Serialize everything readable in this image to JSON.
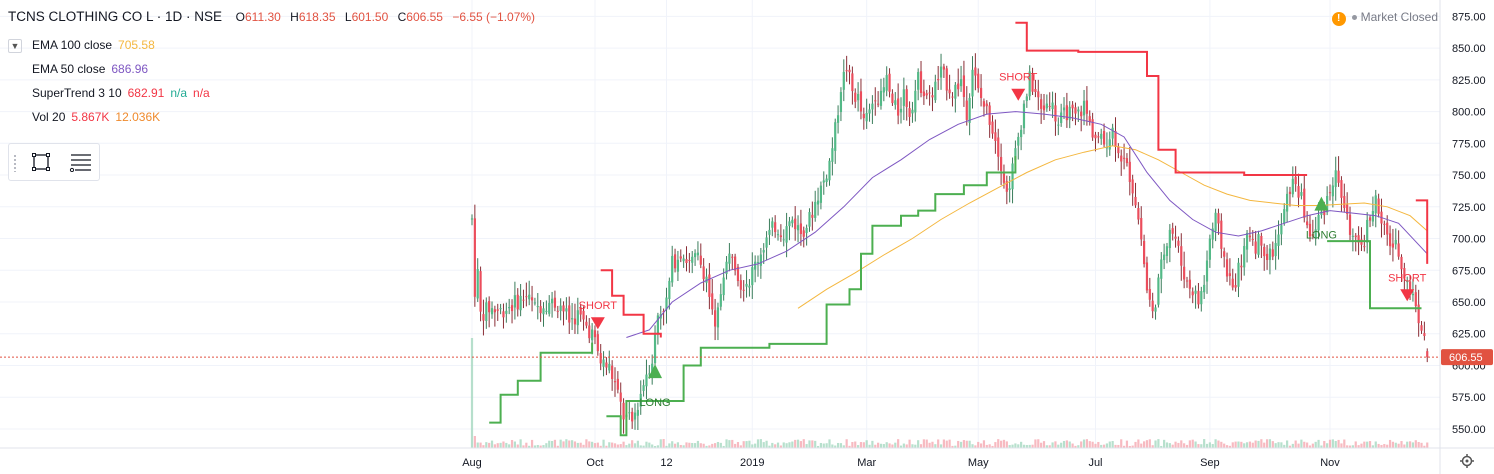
{
  "header": {
    "symbol": "TCNS CLOTHING CO L · 1D · NSE",
    "open_label": "O",
    "open": "611.30",
    "high_label": "H",
    "high": "618.35",
    "low_label": "L",
    "low": "601.50",
    "close_label": "C",
    "close": "606.55",
    "change": "−6.55 (−1.07%)"
  },
  "status": {
    "icon": "warning-icon",
    "text": "Market Closed"
  },
  "indicators": [
    {
      "label": "EMA 100 close",
      "values": [
        "705.58"
      ],
      "colors": [
        "#f4b73f"
      ]
    },
    {
      "label": "EMA 50 close",
      "values": [
        "686.96"
      ],
      "colors": [
        "#7e57c2"
      ]
    },
    {
      "label": "SuperTrend 3 10",
      "values": [
        "682.91",
        "n/a",
        "n/a"
      ],
      "colors": [
        "#f23645",
        "#22ab94",
        "#f23645"
      ]
    },
    {
      "label": "Vol 20",
      "values": [
        "5.867K",
        "12.036K"
      ],
      "colors": [
        "#f23645",
        "#ef8a2d"
      ]
    }
  ],
  "toolbar": {
    "icons": [
      "rectangle-select-icon",
      "object-tree-icon"
    ]
  },
  "colors": {
    "up": "#53b987",
    "down": "#eb4d5c",
    "up_wick": "#3a7d5b",
    "down_wick": "#8a2d36",
    "st_up": "#4caf50",
    "st_down": "#f23645",
    "ema100": "#f4b73f",
    "ema50": "#7e57c2",
    "last_price": "#e15241",
    "grid": "#f0f3fa"
  },
  "chart_data": {
    "type": "candlestick",
    "y_axis": {
      "ylim": [
        535,
        880
      ],
      "ticks": [
        550,
        575,
        600,
        625,
        650,
        675,
        700,
        725,
        750,
        775,
        800,
        825,
        850,
        875
      ]
    },
    "y_tick_labels": [
      "550.00",
      "575.00",
      "600.00",
      "625.00",
      "650.00",
      "675.00",
      "700.00",
      "725.00",
      "750.00",
      "775.00",
      "800.00",
      "825.00",
      "850.00",
      "875.00"
    ],
    "x_labels": [
      {
        "label": "Aug",
        "bar": 0
      },
      {
        "label": "Oct",
        "bar": 43
      },
      {
        "label": "12",
        "bar": 68
      },
      {
        "label": "2019",
        "bar": 98
      },
      {
        "label": "Mar",
        "bar": 138
      },
      {
        "label": "May",
        "bar": 177
      },
      {
        "label": "Jul",
        "bar": 218
      },
      {
        "label": "Sep",
        "bar": 258
      },
      {
        "label": "Nov",
        "bar": 300
      }
    ],
    "last_price": {
      "value": 606.55,
      "label": "606.55"
    },
    "price_path": [
      [
        0,
        715
      ],
      [
        1,
        660
      ],
      [
        2,
        672
      ],
      [
        3,
        640
      ],
      [
        6,
        645
      ],
      [
        10,
        643
      ],
      [
        14,
        648
      ],
      [
        19,
        655
      ],
      [
        22,
        645
      ],
      [
        26,
        650
      ],
      [
        31,
        648
      ],
      [
        34,
        635
      ],
      [
        37,
        640
      ],
      [
        42,
        625
      ],
      [
        45,
        603
      ],
      [
        48,
        598
      ],
      [
        50,
        585
      ],
      [
        53,
        560
      ],
      [
        56,
        555
      ],
      [
        58,
        570
      ],
      [
        61,
        595
      ],
      [
        63,
        605
      ],
      [
        65,
        640
      ],
      [
        68,
        650
      ],
      [
        70,
        680
      ],
      [
        73,
        690
      ],
      [
        76,
        680
      ],
      [
        79,
        685
      ],
      [
        82,
        670
      ],
      [
        85,
        625
      ],
      [
        88,
        675
      ],
      [
        91,
        690
      ],
      [
        94,
        665
      ],
      [
        97,
        668
      ],
      [
        100,
        685
      ],
      [
        103,
        700
      ],
      [
        106,
        710
      ],
      [
        109,
        705
      ],
      [
        112,
        715
      ],
      [
        115,
        705
      ],
      [
        118,
        715
      ],
      [
        121,
        735
      ],
      [
        123,
        745
      ],
      [
        125,
        760
      ],
      [
        127,
        785
      ],
      [
        129,
        820
      ],
      [
        131,
        835
      ],
      [
        133,
        815
      ],
      [
        135,
        810
      ],
      [
        137,
        790
      ],
      [
        139,
        800
      ],
      [
        141,
        815
      ],
      [
        143,
        810
      ],
      [
        145,
        825
      ],
      [
        147,
        805
      ],
      [
        149,
        800
      ],
      [
        151,
        815
      ],
      [
        153,
        800
      ],
      [
        156,
        825
      ],
      [
        160,
        810
      ],
      [
        164,
        830
      ],
      [
        168,
        815
      ],
      [
        171,
        825
      ],
      [
        173,
        800
      ],
      [
        175,
        835
      ],
      [
        177,
        815
      ],
      [
        179,
        805
      ],
      [
        181,
        795
      ],
      [
        183,
        780
      ],
      [
        185,
        760
      ],
      [
        187,
        735
      ],
      [
        189,
        755
      ],
      [
        191,
        780
      ],
      [
        193,
        805
      ],
      [
        195,
        825
      ],
      [
        197,
        815
      ],
      [
        199,
        800
      ],
      [
        202,
        810
      ],
      [
        205,
        790
      ],
      [
        208,
        800
      ],
      [
        211,
        795
      ],
      [
        214,
        805
      ],
      [
        216,
        790
      ],
      [
        218,
        780
      ],
      [
        221,
        775
      ],
      [
        224,
        785
      ],
      [
        227,
        765
      ],
      [
        230,
        750
      ],
      [
        232,
        730
      ],
      [
        234,
        700
      ],
      [
        236,
        660
      ],
      [
        238,
        640
      ],
      [
        240,
        665
      ],
      [
        242,
        690
      ],
      [
        244,
        710
      ],
      [
        246,
        700
      ],
      [
        248,
        680
      ],
      [
        250,
        665
      ],
      [
        252,
        660
      ],
      [
        254,
        650
      ],
      [
        256,
        665
      ],
      [
        258,
        700
      ],
      [
        260,
        715
      ],
      [
        262,
        695
      ],
      [
        264,
        675
      ],
      [
        266,
        660
      ],
      [
        268,
        675
      ],
      [
        270,
        690
      ],
      [
        272,
        705
      ],
      [
        274,
        695
      ],
      [
        276,
        700
      ],
      [
        278,
        685
      ],
      [
        280,
        690
      ],
      [
        282,
        700
      ],
      [
        284,
        720
      ],
      [
        286,
        740
      ],
      [
        288,
        745
      ],
      [
        290,
        730
      ],
      [
        292,
        710
      ],
      [
        294,
        700
      ],
      [
        296,
        715
      ],
      [
        298,
        725
      ],
      [
        300,
        740
      ],
      [
        302,
        750
      ],
      [
        304,
        735
      ],
      [
        306,
        715
      ],
      [
        308,
        700
      ],
      [
        310,
        690
      ],
      [
        312,
        700
      ],
      [
        314,
        720
      ],
      [
        316,
        730
      ],
      [
        318,
        710
      ],
      [
        320,
        700
      ],
      [
        322,
        695
      ],
      [
        324,
        690
      ],
      [
        326,
        672
      ],
      [
        328,
        660
      ],
      [
        330,
        648
      ],
      [
        332,
        630
      ],
      [
        334,
        606.55
      ]
    ],
    "supertrend": {
      "up_segments": [
        [
          [
            6,
            555
          ],
          [
            10,
            577
          ],
          [
            16,
            588
          ],
          [
            24,
            610
          ],
          [
            42,
            618
          ]
        ],
        [
          [
            47,
            560
          ],
          [
            52,
            545
          ],
          [
            54,
            572
          ],
          [
            66,
            572
          ],
          [
            74,
            600
          ],
          [
            80,
            614
          ],
          [
            84,
            614
          ],
          [
            92,
            614
          ],
          [
            104,
            617
          ],
          [
            120,
            617
          ],
          [
            124,
            648
          ],
          [
            132,
            660
          ],
          [
            136,
            688
          ],
          [
            140,
            710
          ],
          [
            150,
            718
          ],
          [
            156,
            722
          ],
          [
            162,
            735
          ],
          [
            172,
            742
          ],
          [
            180,
            752
          ],
          [
            190,
            765
          ]
        ],
        [
          [
            299,
            698
          ],
          [
            314,
            645
          ],
          [
            332,
            645
          ]
        ]
      ],
      "down_segments": [
        [
          [
            45,
            675
          ],
          [
            49,
            655
          ],
          [
            53,
            640
          ],
          [
            60,
            625
          ],
          [
            66,
            622
          ]
        ],
        [
          [
            190,
            870
          ],
          [
            194,
            848
          ],
          [
            212,
            847
          ],
          [
            230,
            847
          ],
          [
            236,
            828
          ],
          [
            240,
            770
          ],
          [
            246,
            752
          ],
          [
            270,
            750
          ],
          [
            292,
            750
          ]
        ],
        [
          [
            330,
            730
          ],
          [
            334,
            680
          ]
        ]
      ]
    },
    "ema50": [
      [
        54,
        622
      ],
      [
        62,
        628
      ],
      [
        70,
        650
      ],
      [
        80,
        665
      ],
      [
        90,
        675
      ],
      [
        100,
        680
      ],
      [
        110,
        690
      ],
      [
        120,
        705
      ],
      [
        130,
        725
      ],
      [
        140,
        748
      ],
      [
        150,
        762
      ],
      [
        160,
        778
      ],
      [
        170,
        790
      ],
      [
        180,
        798
      ],
      [
        190,
        800
      ],
      [
        200,
        798
      ],
      [
        210,
        795
      ],
      [
        220,
        790
      ],
      [
        228,
        780
      ],
      [
        236,
        752
      ],
      [
        244,
        730
      ],
      [
        252,
        715
      ],
      [
        260,
        705
      ],
      [
        268,
        702
      ],
      [
        276,
        706
      ],
      [
        284,
        712
      ],
      [
        292,
        718
      ],
      [
        300,
        722
      ],
      [
        308,
        720
      ],
      [
        316,
        718
      ],
      [
        324,
        712
      ],
      [
        334,
        688
      ]
    ],
    "ema100": [
      [
        114,
        645
      ],
      [
        124,
        660
      ],
      [
        134,
        673
      ],
      [
        144,
        687
      ],
      [
        154,
        700
      ],
      [
        164,
        715
      ],
      [
        174,
        728
      ],
      [
        184,
        740
      ],
      [
        194,
        752
      ],
      [
        204,
        762
      ],
      [
        214,
        768
      ],
      [
        224,
        773
      ],
      [
        232,
        770
      ],
      [
        240,
        762
      ],
      [
        248,
        752
      ],
      [
        256,
        742
      ],
      [
        264,
        735
      ],
      [
        272,
        730
      ],
      [
        280,
        728
      ],
      [
        288,
        726
      ],
      [
        296,
        726
      ],
      [
        304,
        727
      ],
      [
        312,
        728
      ],
      [
        320,
        725
      ],
      [
        328,
        718
      ],
      [
        334,
        706
      ]
    ],
    "signals": [
      {
        "label": "SHORT",
        "type": "short",
        "bar": 44,
        "price": 638
      },
      {
        "label": "LONG",
        "type": "long",
        "bar": 64,
        "price": 590
      },
      {
        "label": "SHORT",
        "type": "short",
        "bar": 191,
        "price": 818
      },
      {
        "label": "LONG",
        "type": "long",
        "bar": 297,
        "price": 722
      },
      {
        "label": "SHORT",
        "type": "short",
        "bar": 327,
        "price": 660
      }
    ],
    "volume_spike_bar": 0
  }
}
